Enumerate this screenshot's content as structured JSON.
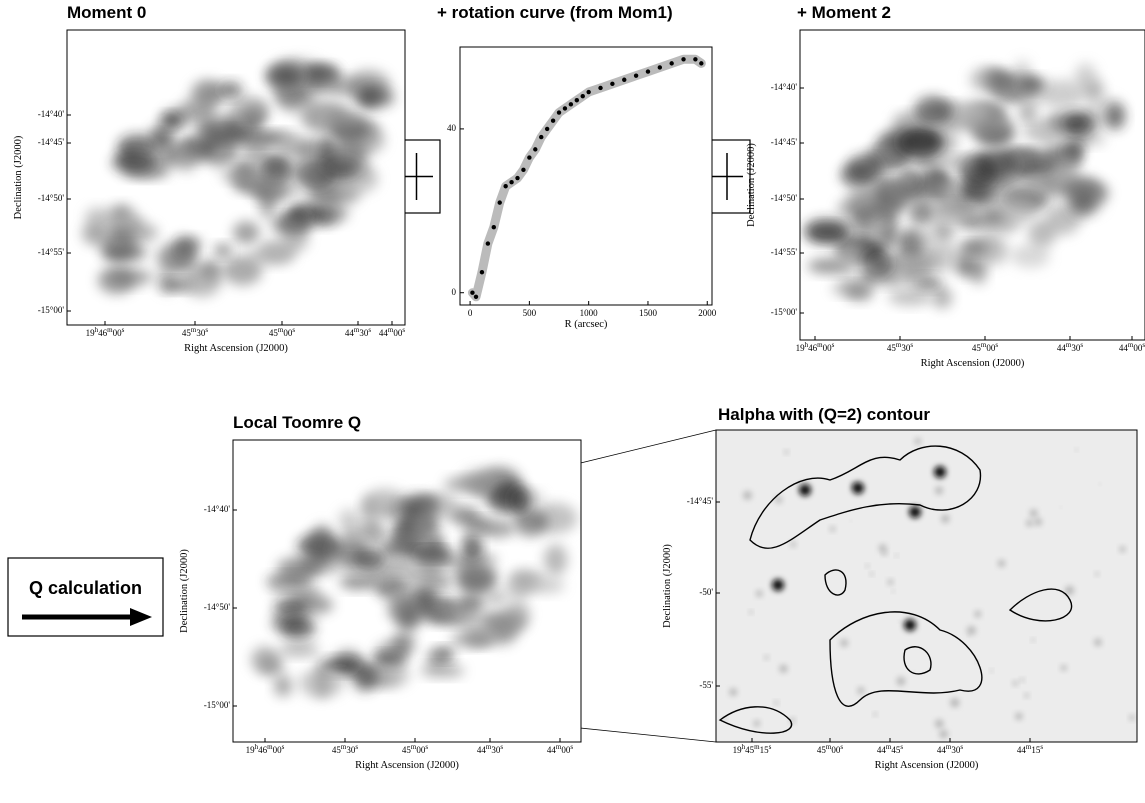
{
  "panels": [
    {
      "title": "Moment 0",
      "y_label": "Declination (J2000)",
      "x_label": "Right Ascension (J2000)",
      "y_ticks": [
        "-14°40'",
        "-14°45'",
        "-14°50'",
        "-14°55'",
        "-15°00'"
      ],
      "x_ticks": [
        "19h46m00s",
        "45m30s",
        "45m00s",
        "44m30s",
        "44m00s"
      ]
    },
    {
      "title": "+ Moment 2",
      "y_label": "Declination (J2000)",
      "x_label": "Right Ascension (J2000)",
      "y_ticks": [
        "-14°40'",
        "-14°45'",
        "-14°50'",
        "-14°55'",
        "-15°00'"
      ],
      "x_ticks": [
        "19h46m00s",
        "45m30s",
        "45m00s",
        "44m30s",
        "44m00s"
      ]
    },
    {
      "title": "Local Toomre Q",
      "y_label": "Declination (J2000)",
      "x_label": "Right Ascension (J2000)",
      "y_ticks": [
        "-14°40'",
        "-14°50'",
        "-15°00'"
      ],
      "x_ticks": [
        "19h46m00s",
        "45m30s",
        "45m00s",
        "44m30s",
        "44m00s"
      ]
    },
    {
      "title": "Halpha with (Q=2) contour",
      "y_label": "Declination (J2000)",
      "x_label": "Right Ascension (J2000)",
      "y_ticks": [
        "-14°45'",
        "-50'",
        "-55'"
      ],
      "x_ticks": [
        "19h45m15s",
        "45m00s",
        "44m45s",
        "44m30s",
        "44m15s"
      ]
    }
  ],
  "rotation_curve": {
    "type": "scatter",
    "title": "+ rotation curve (from Mom1)",
    "x_label": "R (arcsec)",
    "x": [
      20,
      50,
      100,
      150,
      200,
      250,
      300,
      350,
      400,
      450,
      500,
      550,
      600,
      650,
      700,
      750,
      800,
      850,
      900,
      950,
      1000,
      1100,
      1200,
      1300,
      1400,
      1500,
      1600,
      1700,
      1800,
      1900,
      1950
    ],
    "y": [
      0,
      -1,
      5,
      12,
      16,
      22,
      26,
      27,
      28,
      30,
      33,
      35,
      38,
      40,
      42,
      44,
      45,
      46,
      47,
      48,
      49,
      50,
      51,
      52,
      53,
      54,
      55,
      56,
      57,
      57,
      56
    ],
    "xlim": [
      -85,
      2040
    ],
    "ylim": [
      -3,
      60
    ],
    "xticks": [
      0,
      500,
      1000,
      1500,
      2000
    ],
    "yticks": [
      0,
      40
    ],
    "color": "#000000"
  },
  "q_calculation": {
    "label": "Q calculation"
  }
}
